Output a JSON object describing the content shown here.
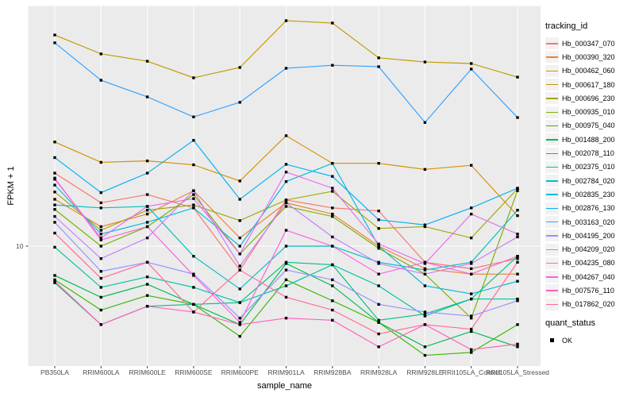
{
  "chart_data": {
    "type": "line",
    "title": "",
    "xlabel": "sample_name",
    "ylabel": "FPKM + 1",
    "y_scale": "log10",
    "y_ticks": [
      10
    ],
    "y_range_approx": [
      3.3,
      94
    ],
    "grid": "white major gridlines on gray panel",
    "legend_position": "right",
    "legend_tracking_title": "tracking_id",
    "quant_title": "quant_status",
    "quant_items": [
      "OK"
    ],
    "point_style": "small filled black square",
    "categories": [
      "PB350LA",
      "RRIM600LA",
      "RRIM600LE",
      "RRIM600SE",
      "RRIM600PE",
      "RRIM901LA",
      "RRIM928BA",
      "RRIM928LA",
      "RRIM928LE",
      "RRII105LA_Control",
      "RRII105LA_Stressed"
    ],
    "series": [
      {
        "name": "Hb_000347_070",
        "color": "#F8766D",
        "values": [
          19.8,
          15.0,
          16.2,
          14.3,
          8.0,
          15.4,
          14.3,
          13.9,
          8.6,
          8.1,
          8.9
        ]
      },
      {
        "name": "Hb_000390_320",
        "color": "#EA8331",
        "values": [
          15.5,
          12.0,
          13.5,
          16.8,
          10.8,
          15.0,
          13.5,
          10.0,
          8.1,
          7.7,
          7.7
        ]
      },
      {
        "name": "Hb_000462_060",
        "color": "#D89000",
        "values": [
          26.5,
          21.9,
          22.2,
          21.4,
          18.4,
          28.1,
          21.7,
          21.7,
          20.5,
          21.3,
          13.3
        ]
      },
      {
        "name": "Hb_000617_180",
        "color": "#C09B00",
        "values": [
          72.1,
          60.4,
          56.4,
          48.3,
          53.2,
          82.4,
          80.6,
          58.2,
          56.0,
          55.2,
          48.6
        ]
      },
      {
        "name": "Hb_000696_230",
        "color": "#A3A500",
        "values": [
          16.6,
          11.6,
          14.0,
          14.7,
          12.7,
          15.4,
          16.7,
          11.8,
          12.0,
          10.8,
          17.1
        ]
      },
      {
        "name": "Hb_000935_010",
        "color": "#7CAE00",
        "values": [
          14.1,
          10.0,
          12.0,
          16.2,
          9.3,
          14.5,
          13.2,
          9.8,
          7.7,
          5.1,
          16.8
        ]
      },
      {
        "name": "Hb_000975_040",
        "color": "#39B600",
        "values": [
          7.3,
          5.5,
          6.3,
          5.8,
          4.3,
          7.3,
          6.0,
          4.9,
          3.6,
          3.7,
          4.8
        ]
      },
      {
        "name": "Hb_001488_200",
        "color": "#00BB4E",
        "values": [
          7.6,
          6.2,
          7.0,
          5.8,
          4.8,
          8.5,
          6.9,
          4.9,
          3.9,
          4.5,
          3.9
        ]
      },
      {
        "name": "Hb_002078_110",
        "color": "#00BF7D",
        "values": [
          7.1,
          4.8,
          5.7,
          5.8,
          5.9,
          8.6,
          8.4,
          5.0,
          5.3,
          6.1,
          9.1
        ]
      },
      {
        "name": "Hb_002375_010",
        "color": "#00C1A3",
        "values": [
          9.9,
          6.8,
          7.5,
          6.8,
          5.9,
          6.9,
          8.4,
          6.9,
          5.2,
          6.1,
          6.1
        ]
      },
      {
        "name": "Hb_002784_020",
        "color": "#00BFC4",
        "values": [
          14.7,
          14.3,
          14.5,
          9.1,
          6.7,
          10.0,
          10.0,
          8.6,
          8.0,
          8.6,
          14.0
        ]
      },
      {
        "name": "Hb_002835_230",
        "color": "#00BAE0",
        "values": [
          17.7,
          11.2,
          12.5,
          14.3,
          10.0,
          18.3,
          21.7,
          10.0,
          6.9,
          6.4,
          7.2
        ]
      },
      {
        "name": "Hb_002876_130",
        "color": "#00B0F6",
        "values": [
          22.9,
          16.5,
          19.8,
          26.9,
          15.5,
          21.5,
          19.2,
          12.8,
          12.2,
          14.3,
          17.2
        ]
      },
      {
        "name": "Hb_003163_020",
        "color": "#35A2FF",
        "values": [
          67.0,
          47.2,
          40.4,
          33.5,
          38.4,
          52.8,
          54.3,
          53.6,
          31.8,
          52.4,
          33.3
        ]
      },
      {
        "name": "Hb_004195_200",
        "color": "#9590FF",
        "values": [
          12.5,
          7.9,
          8.6,
          7.7,
          5.1,
          8.0,
          7.3,
          5.8,
          5.4,
          5.2,
          6.0
        ]
      },
      {
        "name": "Hb_004209_020",
        "color": "#C77CFF",
        "values": [
          13.2,
          8.9,
          10.8,
          16.8,
          8.3,
          15.0,
          10.9,
          8.5,
          7.7,
          8.5,
          10.9
        ]
      },
      {
        "name": "Hb_004235_080",
        "color": "#E76BF3",
        "values": [
          18.7,
          10.8,
          14.5,
          15.6,
          9.3,
          20.0,
          17.2,
          10.2,
          8.5,
          13.5,
          11.2
        ]
      },
      {
        "name": "Hb_004267_040",
        "color": "#FA62DB",
        "values": [
          18.9,
          10.6,
          12.0,
          7.6,
          4.9,
          11.6,
          10.0,
          7.7,
          8.6,
          7.7,
          9.1
        ]
      },
      {
        "name": "Hb_007576_110",
        "color": "#FF62BC",
        "values": [
          7.2,
          4.8,
          5.7,
          5.4,
          4.8,
          5.1,
          5.0,
          3.9,
          4.8,
          3.8,
          4.0
        ]
      },
      {
        "name": "Hb_017862_020",
        "color": "#FF6A98",
        "values": [
          11.3,
          7.4,
          8.6,
          5.4,
          8.0,
          6.2,
          5.5,
          4.4,
          4.8,
          4.6,
          8.6
        ]
      }
    ],
    "colors": {
      "panel_bg": "#EBEBEB",
      "gridline": "#FFFFFF",
      "tick_text": "#4D4D4D",
      "axis_title": "#000000",
      "point": "#000000",
      "legend_key_bg": "#F2F2F2"
    }
  }
}
